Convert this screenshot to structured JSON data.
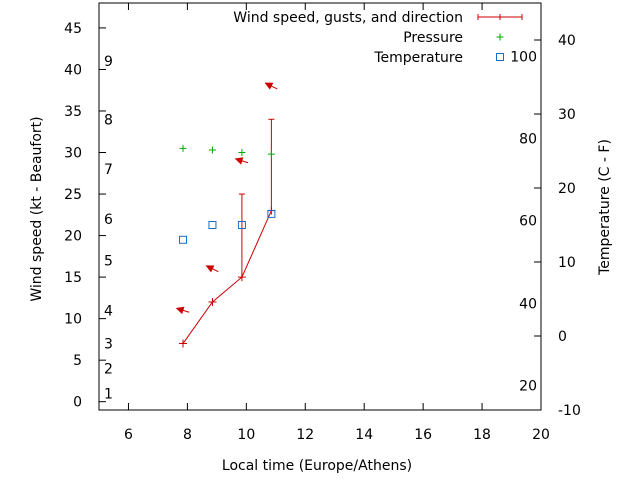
{
  "chart_data": {
    "type": "line",
    "xlabel": "Local time (Europe/Athens)",
    "ylabel": "Wind speed (kt - Beaufort)",
    "y2label": "Temperature (C - F)",
    "xlim": [
      5,
      20
    ],
    "ylim": [
      -1,
      48
    ],
    "y2lim": [
      -10,
      45
    ],
    "grid": false,
    "legend_position": "top-right",
    "x_ticks": [
      6,
      8,
      10,
      12,
      14,
      16,
      18,
      20
    ],
    "y_ticks": [
      0,
      5,
      10,
      15,
      20,
      25,
      30,
      35,
      40,
      45
    ],
    "y2_ticks_celsius": [
      -10,
      0,
      10,
      20,
      30,
      40
    ],
    "fahrenheit_labels": [
      {
        "label": "20",
        "celsius": -6.7
      },
      {
        "label": "40",
        "celsius": 4.4
      },
      {
        "label": "60",
        "celsius": 15.6
      },
      {
        "label": "80",
        "celsius": 26.7
      },
      {
        "label": "100",
        "celsius": 37.8
      }
    ],
    "beaufort_labels": [
      {
        "label": "1",
        "kt": 1
      },
      {
        "label": "2",
        "kt": 4
      },
      {
        "label": "3",
        "kt": 7
      },
      {
        "label": "4",
        "kt": 11
      },
      {
        "label": "5",
        "kt": 17
      },
      {
        "label": "6",
        "kt": 22
      },
      {
        "label": "7",
        "kt": 28
      },
      {
        "label": "8",
        "kt": 34
      },
      {
        "label": "9",
        "kt": 41
      }
    ],
    "series": [
      {
        "name": "Wind speed, gusts, and direction",
        "color": "#cc0000",
        "points": [
          {
            "x": 7.85,
            "y": 7
          },
          {
            "x": 8.85,
            "y": 12
          },
          {
            "x": 9.85,
            "y": 15,
            "gust": 25
          },
          {
            "x": 10.85,
            "y": 23,
            "gust": 34
          }
        ],
        "direction_arrows": [
          {
            "x": 7.85,
            "y": 11,
            "dx": 0.95,
            "dy": 0.3
          },
          {
            "x": 8.85,
            "y": 16,
            "dx": 0.9,
            "dy": 0.45
          },
          {
            "x": 9.85,
            "y": 29,
            "dx": 0.95,
            "dy": 0.3
          },
          {
            "x": 10.85,
            "y": 38,
            "dx": 0.9,
            "dy": 0.45
          }
        ]
      },
      {
        "name": "Pressure",
        "color": "#00aa00",
        "points": [
          {
            "x": 7.85,
            "y": 30.5
          },
          {
            "x": 8.85,
            "y": 30.3
          },
          {
            "x": 9.85,
            "y": 30
          },
          {
            "x": 10.85,
            "y": 29.8
          }
        ]
      },
      {
        "name": "Temperature",
        "color": "#1a6fc4",
        "points": [
          {
            "x": 7.85,
            "y": 13
          },
          {
            "x": 8.85,
            "y": 15
          },
          {
            "x": 9.85,
            "y": 15
          },
          {
            "x": 10.85,
            "y": 16.5
          }
        ]
      }
    ]
  }
}
